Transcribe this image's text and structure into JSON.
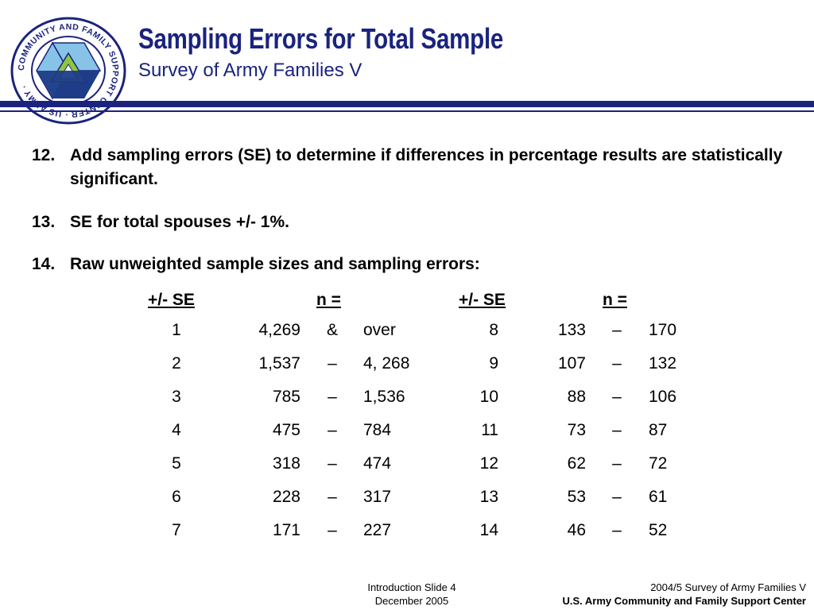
{
  "header": {
    "title": "Sampling Errors for Total Sample",
    "subtitle": "Survey of Army Families V",
    "logo": {
      "ring_text": "COMMUNITY AND FAMILY SUPPORT CENTER · US ARMY ·",
      "colors": {
        "ring": "#1a237e",
        "light_blue": "#87c3e6",
        "green": "#8dc63f",
        "navy": "#1f3c88"
      }
    }
  },
  "items": [
    {
      "num": "12.",
      "text": "Add sampling errors (SE) to determine if differences in percentage results are statistically significant."
    },
    {
      "num": "13.",
      "text": "SE for total spouses +/- 1%."
    },
    {
      "num": "14.",
      "text": "Raw unweighted sample sizes and sampling errors:"
    }
  ],
  "table": {
    "headers": [
      "+/- SE",
      "n =",
      "+/- SE",
      "n ="
    ],
    "rows": [
      {
        "se1": "1",
        "lo1": "4,269",
        "d1": "&",
        "hi1": "over",
        "se2": "8",
        "lo2": "133",
        "d2": "–",
        "hi2": "170"
      },
      {
        "se1": "2",
        "lo1": "1,537",
        "d1": "–",
        "hi1": "4, 268",
        "se2": "9",
        "lo2": "107",
        "d2": "–",
        "hi2": "132"
      },
      {
        "se1": "3",
        "lo1": "785",
        "d1": "–",
        "hi1": "1,536",
        "se2": "10",
        "lo2": "88",
        "d2": "–",
        "hi2": "106"
      },
      {
        "se1": "4",
        "lo1": "475",
        "d1": "–",
        "hi1": "784",
        "se2": "11",
        "lo2": "73",
        "d2": "–",
        "hi2": "87"
      },
      {
        "se1": "5",
        "lo1": "318",
        "d1": "–",
        "hi1": "474",
        "se2": "12",
        "lo2": "62",
        "d2": "–",
        "hi2": "72"
      },
      {
        "se1": "6",
        "lo1": "228",
        "d1": "–",
        "hi1": "317",
        "se2": "13",
        "lo2": "53",
        "d2": "–",
        "hi2": "61"
      },
      {
        "se1": "7",
        "lo1": "171",
        "d1": "–",
        "hi1": "227",
        "se2": "14",
        "lo2": "46",
        "d2": "–",
        "hi2": "52"
      }
    ]
  },
  "footer": {
    "center_line1": "Introduction Slide 4",
    "center_line2": "December 2005",
    "right_line1": "2004/5 Survey of Army Families V",
    "right_line2": "U.S. Army Community and Family Support Center"
  }
}
